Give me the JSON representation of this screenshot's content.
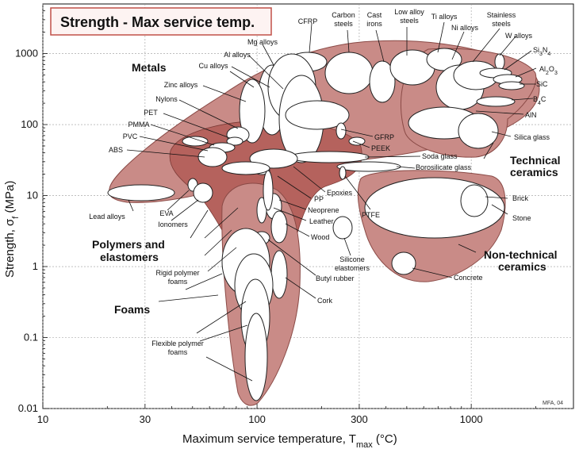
{
  "chart_data": {
    "type": "scatter",
    "title": "Strength - Max service temp.",
    "xlabel": "Maximum service temperature, Tmax (°C)",
    "ylabel": "Strength, σf (MPa)",
    "x_scale": "log",
    "y_scale": "log",
    "xlim": [
      10,
      3000
    ],
    "ylim": [
      0.01,
      5000
    ],
    "x_ticks": [
      10,
      30,
      100,
      300,
      1000
    ],
    "x_tick_labels": [
      "10",
      "30",
      "100",
      "300",
      "1000"
    ],
    "y_ticks": [
      0.01,
      0.1,
      1,
      10,
      100,
      1000
    ],
    "y_tick_labels": [
      "0.01",
      "0.1",
      "1",
      "10",
      "100",
      "1000"
    ],
    "grid": true,
    "credit": "MFA, 04",
    "families": [
      {
        "name": "Metals",
        "fill": "#c98b87"
      },
      {
        "name": "Technical ceramics",
        "fill": "#c98b87"
      },
      {
        "name": "Polymers and elastomers",
        "fill": "#b5625d"
      },
      {
        "name": "Foams",
        "fill": "#c98b87"
      },
      {
        "name": "Non-technical ceramics",
        "fill": "#c98b87"
      }
    ],
    "family_labels": {
      "metals": "Metals",
      "technical_1": "Technical",
      "technical_2": "ceramics",
      "polymers_1": "Polymers and",
      "polymers_2": "elastomers",
      "foams": "Foams",
      "nontech_1": "Non-technical",
      "nontech_2": "ceramics"
    },
    "materials": [
      {
        "label": "CFRP",
        "tmax": [
          120,
          200
        ],
        "strength": [
          450,
          1500
        ]
      },
      {
        "label": "Carbon steels",
        "tmax": [
          250,
          500
        ],
        "strength": [
          250,
          1800
        ]
      },
      {
        "label": "Cast irons",
        "tmax": [
          330,
          430
        ],
        "strength": [
          200,
          1100
        ]
      },
      {
        "label": "Low alloy steels",
        "tmax": [
          350,
          600
        ],
        "strength": [
          500,
          2000
        ]
      },
      {
        "label": "Ti alloys",
        "tmax": [
          500,
          750
        ],
        "strength": [
          350,
          1500
        ]
      },
      {
        "label": "Ni alloys",
        "tmax": [
          650,
          1000
        ],
        "strength": [
          200,
          1500
        ]
      },
      {
        "label": "Stainless steels",
        "tmax": [
          750,
          1100
        ],
        "strength": [
          300,
          1200
        ]
      },
      {
        "label": "W alloys",
        "tmax": [
          1250,
          1350
        ],
        "strength": [
          600,
          1400
        ]
      },
      {
        "label": "Si3N4",
        "tmax": [
          1150,
          1400
        ],
        "strength": [
          500,
          900
        ]
      },
      {
        "label": "Al2O3",
        "tmax": [
          1200,
          1450
        ],
        "strength": [
          330,
          700
        ]
      },
      {
        "label": "SiC",
        "tmax": [
          1250,
          1500
        ],
        "strength": [
          300,
          600
        ]
      },
      {
        "label": "B4C",
        "tmax": [
          900,
          1300
        ],
        "strength": [
          300,
          400
        ]
      },
      {
        "label": "AlN",
        "tmax": [
          600,
          1000
        ],
        "strength": [
          100,
          250
        ]
      },
      {
        "label": "Silica glass",
        "tmax": [
          950,
          1100
        ],
        "strength": [
          50,
          150
        ]
      },
      {
        "label": "Mg alloys",
        "tmax": [
          100,
          160
        ],
        "strength": [
          100,
          400
        ]
      },
      {
        "label": "Al alloys",
        "tmax": [
          110,
          200
        ],
        "strength": [
          80,
          650
        ]
      },
      {
        "label": "Cu alloys",
        "tmax": [
          140,
          230
        ],
        "strength": [
          40,
          600
        ]
      },
      {
        "label": "Zinc alloys",
        "tmax": [
          80,
          110
        ],
        "strength": [
          80,
          450
        ]
      },
      {
        "label": "Nylons",
        "tmax": [
          80,
          110
        ],
        "strength": [
          40,
          100
        ]
      },
      {
        "label": "PET",
        "tmax": [
          60,
          90
        ],
        "strength": [
          50,
          70
        ]
      },
      {
        "label": "PMMA",
        "tmax": [
          40,
          60
        ],
        "strength": [
          50,
          80
        ]
      },
      {
        "label": "PVC",
        "tmax": [
          50,
          80
        ],
        "strength": [
          35,
          55
        ]
      },
      {
        "label": "ABS",
        "tmax": [
          60,
          90
        ],
        "strength": [
          20,
          50
        ]
      },
      {
        "label": "GFRP",
        "tmax": [
          180,
          220
        ],
        "strength": [
          90,
          120
        ]
      },
      {
        "label": "PEEK",
        "tmax": [
          230,
          260
        ],
        "strength": [
          60,
          100
        ]
      },
      {
        "label": "Soda glass",
        "tmax": [
          200,
          500
        ],
        "strength": [
          30,
          40
        ]
      },
      {
        "label": "Borosilicate glass",
        "tmax": [
          250,
          600
        ],
        "strength": [
          20,
          30
        ]
      },
      {
        "label": "Epoxies",
        "tmax": [
          110,
          160
        ],
        "strength": [
          15,
          60
        ]
      },
      {
        "label": "PP",
        "tmax": [
          90,
          110
        ],
        "strength": [
          20,
          35
        ]
      },
      {
        "label": "PTFE",
        "tmax": [
          250,
          280
        ],
        "strength": [
          10,
          25
        ]
      },
      {
        "label": "Neoprene",
        "tmax": [
          100,
          120
        ],
        "strength": [
          3,
          20
        ]
      },
      {
        "label": "Leather",
        "tmax": [
          100,
          120
        ],
        "strength": [
          2,
          8
        ]
      },
      {
        "label": "Wood",
        "tmax": [
          110,
          130
        ],
        "strength": [
          1,
          8
        ]
      },
      {
        "label": "Silicone elastomers",
        "tmax": [
          280,
          320
        ],
        "strength": [
          2.4,
          5.5
        ]
      },
      {
        "label": "Butyl rubber",
        "tmax": [
          100,
          125
        ],
        "strength": [
          0.3,
          3
        ]
      },
      {
        "label": "Cork",
        "tmax": [
          110,
          130
        ],
        "strength": [
          0.3,
          2.5
        ]
      },
      {
        "label": "Lead alloys",
        "tmax": [
          10,
          20
        ],
        "strength": [
          8,
          15
        ]
      },
      {
        "label": "EVA",
        "tmax": [
          45,
          55
        ],
        "strength": [
          12,
          18
        ]
      },
      {
        "label": "Ionomers",
        "tmax": [
          50,
          65
        ],
        "strength": [
          8,
          15
        ]
      },
      {
        "label": "Brick",
        "tmax": [
          900,
          1100
        ],
        "strength": [
          5,
          15
        ]
      },
      {
        "label": "Stone",
        "tmax": [
          900,
          1100
        ],
        "strength": [
          5,
          12
        ]
      },
      {
        "label": "Concrete",
        "tmax": [
          450,
          650
        ],
        "strength": [
          1,
          2
        ]
      },
      {
        "label": "Rigid polymer foams",
        "tmax": [
          80,
          150
        ],
        "strength": [
          0.4,
          5
        ]
      },
      {
        "label": "Flexible polymer foams",
        "tmax": [
          80,
          120
        ],
        "strength": [
          0.02,
          0.3
        ]
      }
    ]
  }
}
